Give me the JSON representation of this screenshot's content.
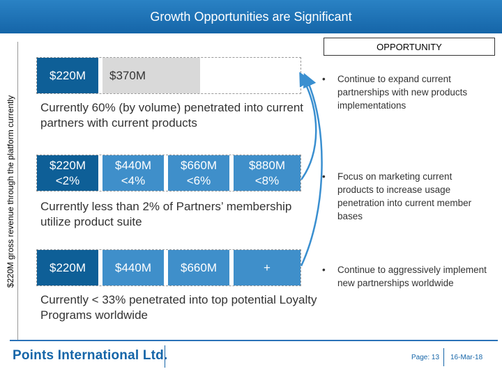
{
  "header": {
    "title": "Growth Opportunities are Significant"
  },
  "side_label": "$220M gross revenue through the platform currently",
  "opportunity_header": "OPPORTUNITY",
  "rows": [
    {
      "segments": [
        {
          "text": "$220M"
        },
        {
          "text": "$370M"
        }
      ],
      "description": "Currently 60% (by volume) penetrated into current partners with current products",
      "opportunity": "Continue to expand current partnerships with new products implementations"
    },
    {
      "segments": [
        {
          "text": "$220M <2%"
        },
        {
          "text": "$440M <4%"
        },
        {
          "text": "$660M <6%"
        },
        {
          "text": "$880M <8%"
        }
      ],
      "description": "Currently less than 2% of Partners’ membership utilize product suite",
      "opportunity": "Focus on marketing current products to increase usage penetration into current member bases"
    },
    {
      "segments": [
        {
          "text": "$220M"
        },
        {
          "text": "$440M"
        },
        {
          "text": "$660M"
        },
        {
          "text": "+"
        }
      ],
      "description": "Currently < 33% penetrated into top potential Loyalty Programs worldwide",
      "opportunity": "Continue to aggressively implement new partnerships worldwide"
    }
  ],
  "footer": {
    "logo": "Points International Ltd.",
    "page": "Page: 13",
    "date": "16-Mar-18"
  },
  "colors": {
    "brand": "#1565a8",
    "dark_segment": "#0e5f97",
    "light_segment": "#3f8fca",
    "gray_segment": "#d9d9d9"
  }
}
